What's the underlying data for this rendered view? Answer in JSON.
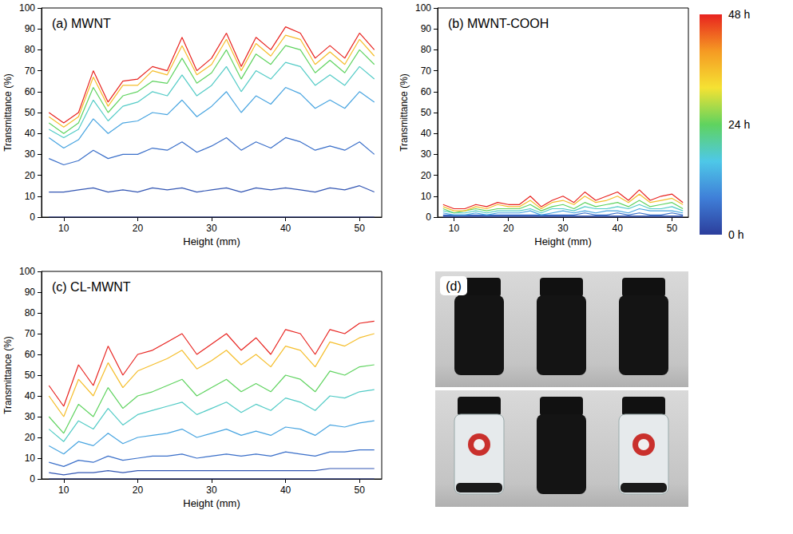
{
  "chart_data": [
    {
      "type": "line",
      "title": "(a) MWNT",
      "x_label": "Height (mm)",
      "y_label": "Transmittance (%)",
      "x": [
        8,
        10,
        12,
        14,
        16,
        18,
        20,
        22,
        24,
        26,
        28,
        30,
        32,
        34,
        36,
        38,
        40,
        42,
        44,
        46,
        48,
        50,
        52
      ],
      "xlim": [
        7,
        53
      ],
      "xticks": [
        10,
        20,
        30,
        40,
        50
      ],
      "ylim": [
        0,
        100
      ],
      "yticks": [
        0,
        10,
        20,
        30,
        40,
        50,
        60,
        70,
        80,
        90,
        100
      ],
      "grid": false,
      "series": [
        {
          "time": 0,
          "values": [
            0,
            0,
            0,
            0,
            0,
            0,
            0,
            0,
            0,
            0,
            0,
            0,
            0,
            0,
            0,
            0,
            0,
            0,
            0,
            0,
            0,
            0,
            0
          ]
        },
        {
          "time": 3,
          "values": [
            12,
            12,
            13,
            14,
            12,
            13,
            12,
            14,
            13,
            14,
            12,
            13,
            14,
            12,
            14,
            13,
            14,
            13,
            12,
            14,
            13,
            15,
            12
          ]
        },
        {
          "time": 6,
          "values": [
            28,
            25,
            27,
            32,
            28,
            30,
            30,
            33,
            32,
            36,
            31,
            34,
            38,
            32,
            36,
            33,
            38,
            36,
            32,
            34,
            32,
            36,
            30
          ]
        },
        {
          "time": 12,
          "values": [
            38,
            33,
            37,
            47,
            40,
            45,
            46,
            50,
            49,
            56,
            48,
            53,
            60,
            50,
            58,
            54,
            62,
            59,
            52,
            56,
            52,
            60,
            55
          ]
        },
        {
          "time": 18,
          "values": [
            42,
            38,
            42,
            56,
            46,
            53,
            55,
            60,
            58,
            68,
            58,
            63,
            72,
            60,
            70,
            66,
            74,
            72,
            63,
            68,
            63,
            72,
            66
          ]
        },
        {
          "time": 24,
          "values": [
            45,
            40,
            45,
            62,
            50,
            58,
            60,
            65,
            64,
            76,
            64,
            69,
            80,
            66,
            78,
            73,
            82,
            80,
            69,
            75,
            69,
            80,
            73
          ]
        },
        {
          "time": 36,
          "values": [
            48,
            43,
            48,
            67,
            53,
            63,
            63,
            70,
            68,
            82,
            68,
            73,
            85,
            70,
            83,
            77,
            87,
            85,
            73,
            79,
            73,
            85,
            77
          ]
        },
        {
          "time": 48,
          "values": [
            50,
            45,
            50,
            70,
            55,
            65,
            66,
            72,
            70,
            86,
            70,
            76,
            88,
            72,
            86,
            80,
            91,
            88,
            76,
            82,
            76,
            88,
            80
          ]
        }
      ]
    },
    {
      "type": "line",
      "title": "(b) MWNT-COOH",
      "x_label": "Height (mm)",
      "y_label": "Transmittance (%)",
      "x": [
        8,
        10,
        12,
        14,
        16,
        18,
        20,
        22,
        24,
        26,
        28,
        30,
        32,
        34,
        36,
        38,
        40,
        42,
        44,
        46,
        48,
        50,
        52
      ],
      "xlim": [
        7,
        53
      ],
      "xticks": [
        10,
        20,
        30,
        40,
        50
      ],
      "ylim": [
        0,
        100
      ],
      "yticks": [
        0,
        10,
        20,
        30,
        40,
        50,
        60,
        70,
        80,
        90,
        100
      ],
      "grid": false,
      "series": [
        {
          "time": 0,
          "values": [
            0,
            0,
            0,
            0,
            0,
            0,
            0,
            0,
            0,
            0,
            0,
            0,
            0,
            0,
            0,
            0,
            0,
            0,
            0,
            0,
            0,
            0,
            0
          ]
        },
        {
          "time": 3,
          "values": [
            0.5,
            0.5,
            0.5,
            0.5,
            0.5,
            0.5,
            0.5,
            0.5,
            0.5,
            0.5,
            0.5,
            0.5,
            0.5,
            0.5,
            0.5,
            0.5,
            0.5,
            0.5,
            0.5,
            0.5,
            0.5,
            0.5,
            0.5
          ]
        },
        {
          "time": 6,
          "values": [
            1,
            1,
            1,
            1,
            1,
            1,
            1,
            1,
            1,
            1,
            1,
            1,
            1,
            2,
            1,
            1,
            2,
            1,
            2,
            1,
            1,
            2,
            1
          ]
        },
        {
          "time": 12,
          "values": [
            2,
            1,
            1,
            2,
            1,
            2,
            2,
            2,
            3,
            1,
            2,
            3,
            2,
            3,
            2,
            3,
            3,
            2,
            4,
            3,
            3,
            3,
            2
          ]
        },
        {
          "time": 18,
          "values": [
            3,
            2,
            2,
            3,
            2,
            3,
            3,
            3,
            4,
            2,
            4,
            4,
            3,
            5,
            4,
            4,
            5,
            4,
            6,
            4,
            4,
            5,
            3
          ]
        },
        {
          "time": 24,
          "values": [
            4,
            2,
            3,
            4,
            3,
            4,
            4,
            4,
            6,
            3,
            5,
            6,
            4,
            7,
            5,
            6,
            7,
            5,
            8,
            5,
            6,
            7,
            4
          ]
        },
        {
          "time": 36,
          "values": [
            5,
            3,
            3,
            5,
            4,
            6,
            5,
            5,
            8,
            4,
            7,
            8,
            6,
            10,
            7,
            8,
            10,
            7,
            11,
            7,
            8,
            9,
            6
          ]
        },
        {
          "time": 48,
          "values": [
            6,
            4,
            4,
            6,
            5,
            7,
            6,
            6,
            10,
            5,
            8,
            10,
            7,
            12,
            8,
            10,
            12,
            8,
            13,
            8,
            10,
            11,
            7
          ]
        }
      ]
    },
    {
      "type": "line",
      "title": "(c) CL-MWNT",
      "x_label": "Height (mm)",
      "y_label": "Transmittance (%)",
      "x": [
        8,
        10,
        12,
        14,
        16,
        18,
        20,
        22,
        24,
        26,
        28,
        30,
        32,
        34,
        36,
        38,
        40,
        42,
        44,
        46,
        48,
        50,
        52
      ],
      "xlim": [
        7,
        53
      ],
      "xticks": [
        10,
        20,
        30,
        40,
        50
      ],
      "ylim": [
        0,
        100
      ],
      "yticks": [
        0,
        10,
        20,
        30,
        40,
        50,
        60,
        70,
        80,
        90,
        100
      ],
      "grid": false,
      "series": [
        {
          "time": 0,
          "values": [
            0,
            0,
            0,
            0,
            0,
            0,
            0,
            0,
            0,
            0,
            0,
            0,
            0,
            0,
            0,
            0,
            0,
            0,
            0,
            0,
            0,
            0,
            0
          ]
        },
        {
          "time": 3,
          "values": [
            3,
            2,
            3,
            3,
            4,
            3,
            4,
            4,
            4,
            4,
            4,
            4,
            4,
            4,
            4,
            4,
            4,
            4,
            4,
            5,
            5,
            5,
            5
          ]
        },
        {
          "time": 6,
          "values": [
            8,
            6,
            9,
            8,
            11,
            9,
            10,
            11,
            11,
            12,
            10,
            11,
            12,
            11,
            12,
            11,
            13,
            12,
            11,
            13,
            13,
            14,
            14
          ]
        },
        {
          "time": 12,
          "values": [
            16,
            12,
            18,
            16,
            22,
            17,
            20,
            21,
            22,
            24,
            20,
            22,
            24,
            21,
            23,
            21,
            25,
            24,
            21,
            26,
            25,
            27,
            28
          ]
        },
        {
          "time": 18,
          "values": [
            24,
            18,
            28,
            24,
            34,
            26,
            31,
            33,
            35,
            37,
            31,
            34,
            37,
            32,
            36,
            33,
            39,
            37,
            33,
            40,
            39,
            42,
            43
          ]
        },
        {
          "time": 24,
          "values": [
            30,
            22,
            36,
            30,
            44,
            34,
            40,
            42,
            45,
            48,
            40,
            44,
            48,
            42,
            46,
            42,
            50,
            48,
            42,
            52,
            50,
            54,
            55
          ]
        },
        {
          "time": 36,
          "values": [
            40,
            30,
            48,
            40,
            56,
            44,
            52,
            55,
            58,
            62,
            53,
            57,
            62,
            55,
            60,
            54,
            64,
            62,
            54,
            66,
            64,
            68,
            70
          ]
        },
        {
          "time": 48,
          "values": [
            45,
            35,
            55,
            45,
            64,
            50,
            60,
            62,
            66,
            70,
            60,
            65,
            70,
            62,
            68,
            60,
            72,
            70,
            60,
            72,
            70,
            75,
            76
          ]
        }
      ]
    }
  ],
  "colorbar": {
    "range": [
      0,
      48
    ],
    "ticks": [
      {
        "value": 0,
        "label": "0 h"
      },
      {
        "value": 24,
        "label": "24 h"
      },
      {
        "value": 48,
        "label": "48 h"
      }
    ],
    "colors": [
      "#2c3e9c",
      "#3f7fd8",
      "#4ec8e8",
      "#5fd35f",
      "#f5e233",
      "#f59a23",
      "#e8231f"
    ]
  },
  "photo": {
    "label": "(d)"
  }
}
